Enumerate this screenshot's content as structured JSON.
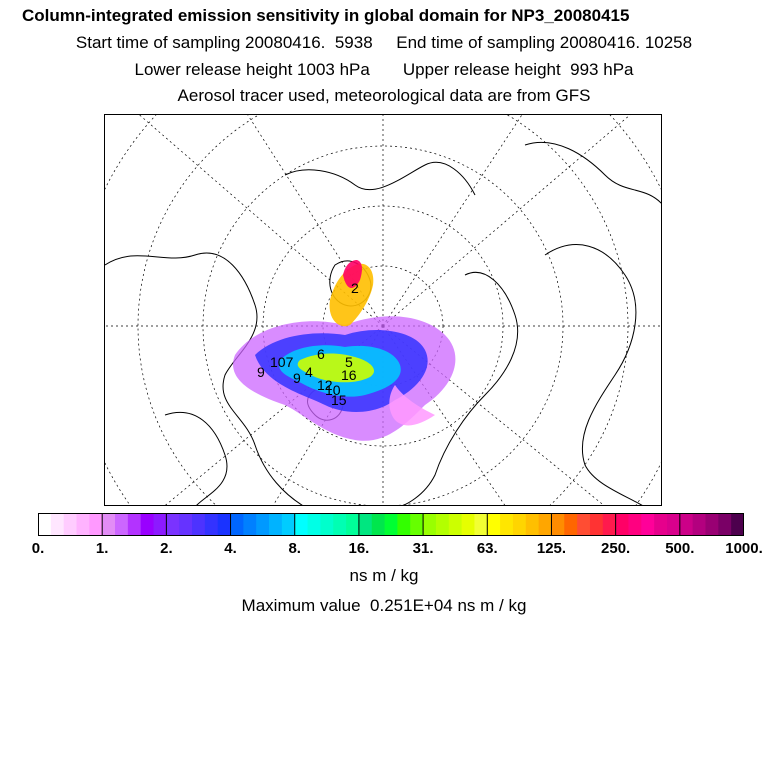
{
  "header": {
    "title": "Column-integrated emission sensitivity in global domain for NP3_20080415",
    "sampling": "Start time of sampling 20080416.  5938     End time of sampling 20080416. 10258",
    "release": "Lower release height 1003 hPa       Upper release height  993 hPa",
    "tracer": "Aerosol tracer used, meteorological data are from GFS"
  },
  "map": {
    "projection": "north-polar-stereographic",
    "plume_labels": [
      "9",
      "107",
      "6",
      "5",
      "2",
      "4",
      "16",
      "12",
      "15",
      "9",
      "10"
    ]
  },
  "colorbar": {
    "tick_labels": [
      "0.",
      "1.",
      "2.",
      "4.",
      "8.",
      "16.",
      "31.",
      "63.",
      "125.",
      "250.",
      "500.",
      "1000."
    ],
    "colors": [
      "#ffffff",
      "#ffe6ff",
      "#ffccff",
      "#ffb3ff",
      "#ff99ff",
      "#e28cf6",
      "#cc66ff",
      "#b333ff",
      "#9900ff",
      "#8c1aff",
      "#7a33ff",
      "#6633ff",
      "#4d33ff",
      "#3333ff",
      "#1a33ff",
      "#0066ff",
      "#0080ff",
      "#0099ff",
      "#00b3ff",
      "#00ccff",
      "#00ffff",
      "#00ffe6",
      "#00ffcc",
      "#00ffb3",
      "#00ff99",
      "#00e680",
      "#00e64d",
      "#00ff33",
      "#33ff00",
      "#66ff00",
      "#99ff00",
      "#b3ff00",
      "#ccff00",
      "#e6ff00",
      "#f2ff33",
      "#ffff00",
      "#ffe600",
      "#ffd500",
      "#ffbf00",
      "#ffa600",
      "#ff8c00",
      "#ff6600",
      "#ff4d33",
      "#ff3333",
      "#ff1a4d",
      "#ff0066",
      "#ff0080",
      "#ff0099",
      "#e6008c",
      "#d9008c",
      "#cc0088",
      "#b3007f",
      "#990073",
      "#7a0066",
      "#4d004d"
    ]
  },
  "units": "ns m / kg",
  "maximum": "Maximum value  0.251E+04 ns m / kg"
}
